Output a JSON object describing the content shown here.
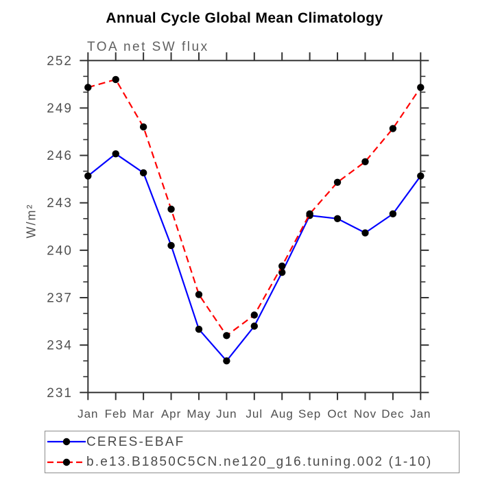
{
  "title": "Annual Cycle Global Mean Climatology",
  "chart_data": {
    "type": "line",
    "title": "Annual Cycle Global Mean Climatology",
    "subtitle_left": "TOA net SW flux",
    "ylabel": "W/m²",
    "categories": [
      "Jan",
      "Feb",
      "Mar",
      "Apr",
      "May",
      "Jun",
      "Jul",
      "Aug",
      "Sep",
      "Oct",
      "Nov",
      "Dec",
      "Jan"
    ],
    "ylim": [
      231,
      252
    ],
    "yticks": [
      231,
      234,
      237,
      240,
      243,
      246,
      249,
      252
    ],
    "ytick_minor_step": 1,
    "grid": false,
    "legend_position": "below-left",
    "series": [
      {
        "name": "CERES-EBAF",
        "color": "#0000ff",
        "line_style": "solid",
        "marker": "filled-circle",
        "marker_color": "#000000",
        "values": [
          244.7,
          246.1,
          244.9,
          240.3,
          235.0,
          233.0,
          235.2,
          238.6,
          242.2,
          242.0,
          241.1,
          242.3,
          244.7
        ]
      },
      {
        "name": "b.e13.B1850C5CN.ne120_g16.tuning.002 (1-10)",
        "color": "#ff0000",
        "line_style": "dashed",
        "marker": "filled-circle",
        "marker_color": "#000000",
        "values": [
          250.3,
          250.8,
          247.8,
          242.6,
          237.2,
          234.6,
          235.9,
          239.0,
          242.3,
          244.3,
          245.6,
          247.7,
          250.3
        ]
      }
    ]
  },
  "colors": {
    "background": "#ffffff",
    "axis": "#333333",
    "tick_label": "#4f4f4f",
    "title": "#000000",
    "subtitle": "#606060",
    "legend_border": "#8c8c8c",
    "legend_text": "#4a4a4a"
  }
}
